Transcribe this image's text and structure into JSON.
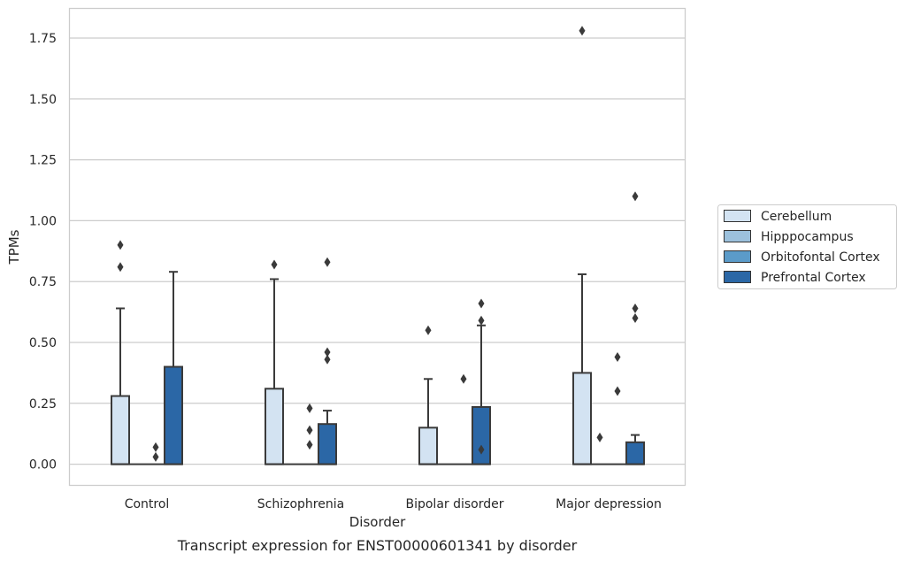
{
  "caption": "Transcript expression for ENST00000601341 by disorder",
  "chart_data": {
    "type": "box",
    "title": "",
    "xlabel": "Disorder",
    "ylabel": "TPMs",
    "ylim": [
      -0.085,
      1.87
    ],
    "yticks": [
      "0.00",
      "0.25",
      "0.50",
      "0.75",
      "1.00",
      "1.25",
      "1.50",
      "1.75"
    ],
    "grid": "horizontal",
    "legend_position": "right",
    "categories": [
      "Control",
      "Schizophrenia",
      "Bipolar disorder",
      "Major depression"
    ],
    "series": [
      {
        "name": "Cerebellum",
        "color": "#d3e3f2",
        "boxes": [
          {
            "q1": 0,
            "median": 0,
            "q3": 0.28,
            "whisker_low": 0,
            "whisker_high": 0.64,
            "outliers": [
              0.9,
              0.81
            ]
          },
          {
            "q1": 0,
            "median": 0,
            "q3": 0.31,
            "whisker_low": 0,
            "whisker_high": 0.76,
            "outliers": [
              0.82
            ]
          },
          {
            "q1": 0,
            "median": 0,
            "q3": 0.15,
            "whisker_low": 0,
            "whisker_high": 0.35,
            "outliers": [
              0.55
            ]
          },
          {
            "q1": 0,
            "median": 0,
            "q3": 0.375,
            "whisker_low": 0,
            "whisker_high": 0.78,
            "outliers": [
              1.78
            ]
          }
        ]
      },
      {
        "name": "Hipppocampus",
        "color": "#9cc1dd",
        "boxes": [
          {
            "q1": 0,
            "median": 0,
            "q3": 0,
            "whisker_low": 0,
            "whisker_high": 0,
            "outliers": []
          },
          {
            "q1": 0,
            "median": 0,
            "q3": 0,
            "whisker_low": 0,
            "whisker_high": 0,
            "outliers": []
          },
          {
            "q1": 0,
            "median": 0,
            "q3": 0,
            "whisker_low": 0,
            "whisker_high": 0,
            "outliers": []
          },
          {
            "q1": 0,
            "median": 0,
            "q3": 0,
            "whisker_low": 0,
            "whisker_high": 0,
            "outliers": [
              0.11
            ]
          }
        ]
      },
      {
        "name": "Orbitofontal Cortex",
        "color": "#5b9bc9",
        "boxes": [
          {
            "q1": 0,
            "median": 0,
            "q3": 0,
            "whisker_low": 0,
            "whisker_high": 0,
            "outliers": [
              0.07,
              0.03
            ]
          },
          {
            "q1": 0,
            "median": 0,
            "q3": 0,
            "whisker_low": 0,
            "whisker_high": 0,
            "outliers": [
              0.23,
              0.14,
              0.08
            ]
          },
          {
            "q1": 0,
            "median": 0,
            "q3": 0,
            "whisker_low": 0,
            "whisker_high": 0,
            "outliers": [
              0.35
            ]
          },
          {
            "q1": 0,
            "median": 0,
            "q3": 0,
            "whisker_low": 0,
            "whisker_high": 0,
            "outliers": [
              0.44,
              0.3
            ]
          }
        ]
      },
      {
        "name": "Prefrontal Cortex",
        "color": "#2b67a6",
        "boxes": [
          {
            "q1": 0,
            "median": 0,
            "q3": 0.4,
            "whisker_low": 0,
            "whisker_high": 0.79,
            "outliers": []
          },
          {
            "q1": 0,
            "median": 0,
            "q3": 0.165,
            "whisker_low": 0,
            "whisker_high": 0.22,
            "outliers": [
              0.83,
              0.46,
              0.43
            ]
          },
          {
            "q1": 0,
            "median": 0,
            "q3": 0.235,
            "whisker_low": 0,
            "whisker_high": 0.57,
            "outliers": [
              0.66,
              0.59,
              0.06
            ]
          },
          {
            "q1": 0,
            "median": 0,
            "q3": 0.09,
            "whisker_low": 0,
            "whisker_high": 0.12,
            "outliers": [
              1.1,
              0.64,
              0.6
            ]
          }
        ]
      }
    ]
  }
}
